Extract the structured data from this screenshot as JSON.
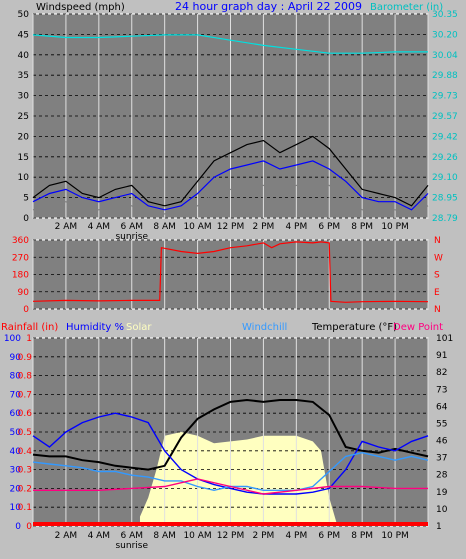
{
  "chart_data": [
    {
      "type": "line",
      "title": "24 hour graph day : April 22 2009",
      "left_axis_label": "Windspeed (mph)",
      "right_axis_label": "Barometer (in)",
      "left_ticks": [
        "0",
        "5",
        "10",
        "15",
        "20",
        "25",
        "30",
        "35",
        "40",
        "45",
        "50"
      ],
      "right_ticks": [
        "28.79",
        "28.95",
        "29.10",
        "29.26",
        "29.42",
        "29.57",
        "29.73",
        "29.88",
        "30.04",
        "30.20",
        "30.35"
      ],
      "x_ticks": [
        "2 AM",
        "4 AM",
        "6 AM",
        "8 AM",
        "10 AM",
        "12 PM",
        "2 PM",
        "4 PM",
        "6 PM",
        "8 PM",
        "10 PM"
      ],
      "sunrise_label": "sunrise",
      "ylim_left": [
        0,
        50
      ],
      "ylim_right": [
        28.79,
        30.35
      ],
      "grid": true,
      "series": [
        {
          "name": "",
          "color": "#000000",
          "x": [
            0,
            1,
            2,
            3,
            4,
            5,
            6,
            7,
            8,
            9,
            10,
            11,
            12,
            13,
            14,
            15,
            16,
            17,
            18,
            19,
            20,
            21,
            22,
            23,
            24
          ],
          "values": [
            5,
            8,
            9,
            6,
            5,
            7,
            8,
            4,
            3,
            4,
            9,
            14,
            16,
            18,
            19,
            16,
            18,
            20,
            17,
            12,
            7,
            6,
            5,
            3,
            8
          ]
        },
        {
          "name": "",
          "color": "#0000ff",
          "x": [
            0,
            1,
            2,
            3,
            4,
            5,
            6,
            7,
            8,
            9,
            10,
            11,
            12,
            13,
            14,
            15,
            16,
            17,
            18,
            19,
            20,
            21,
            22,
            23,
            24
          ],
          "values": [
            4,
            6,
            7,
            5,
            4,
            5,
            6,
            3,
            2,
            3,
            6,
            10,
            12,
            13,
            14,
            12,
            13,
            14,
            12,
            9,
            5,
            4,
            4,
            2,
            6
          ]
        },
        {
          "name": "",
          "color": "#808080",
          "x": [
            0,
            1,
            2,
            3,
            4,
            5,
            6,
            7,
            8,
            9,
            10,
            11,
            12,
            13,
            14,
            15,
            16,
            17,
            18,
            19,
            20,
            21,
            22,
            23,
            24
          ],
          "values": [
            2,
            3,
            4,
            2,
            2,
            3,
            3,
            1,
            1,
            2,
            3,
            6,
            7,
            8,
            8,
            7,
            8,
            9,
            8,
            5,
            2,
            2,
            2,
            1,
            3
          ]
        },
        {
          "name": "",
          "color": "#00e0e0",
          "axis": "right",
          "x": [
            0,
            2,
            4,
            6,
            8,
            10,
            12,
            14,
            16,
            18,
            20,
            22,
            24
          ],
          "values": [
            30.19,
            30.17,
            30.17,
            30.18,
            30.19,
            30.19,
            30.15,
            30.11,
            30.08,
            30.05,
            30.05,
            30.06,
            30.06
          ]
        }
      ]
    },
    {
      "type": "line",
      "left_ticks": [
        "0",
        "90",
        "180",
        "270",
        "360"
      ],
      "right_ticks": [
        "N",
        "E",
        "S",
        "W",
        "N"
      ],
      "ylim": [
        0,
        360
      ],
      "grid": true,
      "series": [
        {
          "name": "",
          "color": "#ff0000",
          "x": [
            0,
            2,
            4,
            6,
            7.7,
            7.8,
            9,
            10,
            11,
            12,
            13,
            14,
            14.5,
            15,
            16,
            17,
            17.5,
            18,
            18.1,
            19,
            20,
            22,
            24
          ],
          "values": [
            40,
            45,
            42,
            45,
            45,
            320,
            300,
            290,
            300,
            320,
            330,
            345,
            320,
            340,
            350,
            345,
            350,
            345,
            40,
            35,
            38,
            40,
            38
          ]
        }
      ]
    },
    {
      "type": "line",
      "labels": {
        "rainfall": "Rainfall (in)",
        "humidity": "Humidity %",
        "solar": "Solar",
        "windchill": "Windchill",
        "temperature": "Temperature (°F)",
        "dewpoint": "Dew Point"
      },
      "left_ticks_pct": [
        "0",
        "10",
        "20",
        "30",
        "40",
        "50",
        "60",
        "70",
        "80",
        "90",
        "100"
      ],
      "left_ticks_rain": [
        "0",
        "0.1",
        "0.2",
        "0.3",
        "0.4",
        "0.5",
        "0.6",
        "0.7",
        "0.8",
        "0.9",
        "1"
      ],
      "right_ticks": [
        "1",
        "10",
        "19",
        "28",
        "37",
        "46",
        "55",
        "64",
        "73",
        "82",
        "91",
        "101"
      ],
      "x_ticks": [
        "2 AM",
        "4 AM",
        "6 AM",
        "8 AM",
        "10 AM",
        "12 PM",
        "2 PM",
        "4 PM",
        "6 PM",
        "8 PM",
        "10 PM"
      ],
      "sunrise_label": "sunrise",
      "ylim_left": [
        0,
        100
      ],
      "ylim_right": [
        1,
        101
      ],
      "grid": true,
      "series": [
        {
          "name": "Temperature (°F)",
          "color": "#000000",
          "axis": "right",
          "x": [
            0,
            1,
            2,
            3,
            4,
            5,
            6,
            7,
            8,
            9,
            10,
            11,
            12,
            13,
            14,
            15,
            16,
            17,
            18,
            19,
            20,
            21,
            22,
            23,
            24
          ],
          "values": [
            39,
            38,
            38,
            36,
            35,
            33,
            32,
            31,
            33,
            48,
            58,
            63,
            67,
            68,
            67,
            68,
            68,
            67,
            60,
            43,
            41,
            40,
            42,
            40,
            38
          ]
        },
        {
          "name": "Humidity %",
          "color": "#0000ff",
          "x": [
            0,
            1,
            2,
            3,
            4,
            5,
            6,
            7,
            8,
            9,
            10,
            11,
            12,
            13,
            14,
            15,
            16,
            17,
            18,
            19,
            20,
            21,
            22,
            23,
            24
          ],
          "values": [
            48,
            42,
            50,
            55,
            58,
            60,
            58,
            55,
            40,
            30,
            25,
            22,
            20,
            18,
            17,
            17,
            17,
            18,
            20,
            30,
            45,
            42,
            40,
            45,
            48
          ]
        },
        {
          "name": "Windchill",
          "color": "#3399ff",
          "axis": "right",
          "x": [
            0,
            1,
            2,
            3,
            4,
            5,
            6,
            7,
            8,
            9,
            10,
            11,
            12,
            13,
            14,
            15,
            16,
            17,
            18,
            19,
            20,
            21,
            22,
            23,
            24
          ],
          "values": [
            35,
            34,
            33,
            32,
            30,
            30,
            28,
            27,
            25,
            25,
            22,
            20,
            22,
            22,
            20,
            20,
            20,
            22,
            30,
            38,
            40,
            38,
            36,
            38,
            36
          ]
        },
        {
          "name": "Dew Point",
          "color": "#ff0080",
          "axis": "right",
          "x": [
            0,
            2,
            4,
            6,
            8,
            10,
            12,
            14,
            16,
            18,
            20,
            22,
            24
          ],
          "values": [
            20,
            20,
            20,
            21,
            22,
            26,
            22,
            18,
            20,
            22,
            22,
            21,
            21
          ]
        },
        {
          "name": "Solar",
          "color": "#ffffc0",
          "type": "area",
          "x": [
            6.5,
            7,
            7.5,
            8,
            9,
            10,
            11,
            12,
            13,
            14,
            15,
            16,
            17,
            17.5,
            18,
            18.5
          ],
          "values": [
            5,
            15,
            30,
            48,
            50,
            48,
            44,
            45,
            46,
            48,
            48,
            48,
            45,
            40,
            15,
            0
          ]
        }
      ]
    }
  ]
}
